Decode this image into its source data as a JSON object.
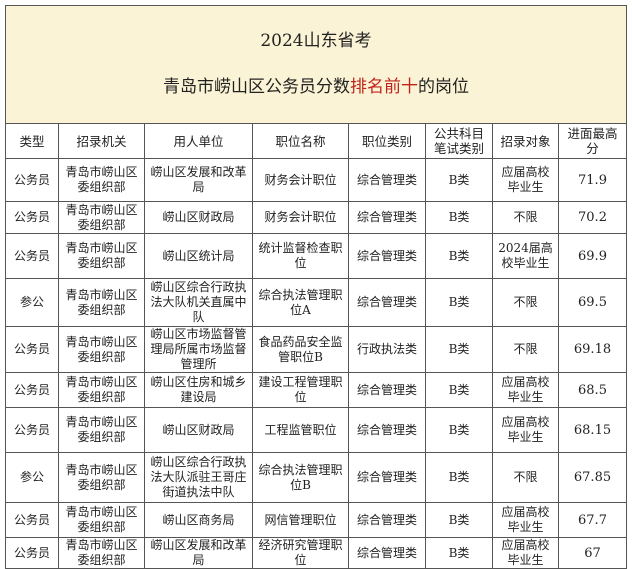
{
  "title": {
    "line1": "2024山东省考",
    "line2_pre": "青岛市崂山区公务员分数",
    "line2_highlight": "排名前十",
    "line2_post": "的岗位",
    "highlight_color": "#c0231b",
    "background": "#fbf3d5"
  },
  "headers": [
    "类型",
    "招录机关",
    "用人单位",
    "职位名称",
    "职位类别",
    "公共科目\n笔试类别",
    "招录对象",
    "进面最高\n分"
  ],
  "rows": [
    [
      "公务员",
      "青岛市崂山区\n委组织部",
      "崂山区发展和改革\n局",
      "财务会计职位",
      "综合管理类",
      "B类",
      "应届高校\n毕业生",
      "71.9"
    ],
    [
      "公务员",
      "青岛市崂山区\n委组织部",
      "崂山区财政局",
      "财务会计职位",
      "综合管理类",
      "B类",
      "不限",
      "70.2"
    ],
    [
      "公务员",
      "青岛市崂山区\n委组织部",
      "崂山区统计局",
      "统计监督检查职\n位",
      "综合管理类",
      "B类",
      "2024届高\n校毕业生",
      "69.9"
    ],
    [
      "参公",
      "青岛市崂山区\n委组织部",
      "崂山区综合行政执\n法大队机关直属中\n队",
      "综合执法管理职\n位A",
      "综合管理类",
      "B类",
      "不限",
      "69.5"
    ],
    [
      "公务员",
      "青岛市崂山区\n委组织部",
      "崂山区市场监督管\n理局所属市场监督\n管理所",
      "食品药品安全监\n管职位B",
      "行政执法类",
      "B类",
      "不限",
      "69.18"
    ],
    [
      "公务员",
      "青岛市崂山区\n委组织部",
      "崂山区住房和城乡\n建设局",
      "建设工程管理职\n位",
      "综合管理类",
      "B类",
      "应届高校\n毕业生",
      "68.5"
    ],
    [
      "公务员",
      "青岛市崂山区\n委组织部",
      "崂山区财政局",
      "工程监管职位",
      "综合管理类",
      "B类",
      "应届高校\n毕业生",
      "68.15"
    ],
    [
      "参公",
      "青岛市崂山区\n委组织部",
      "崂山区综合行政执\n法大队派驻王哥庄\n街道执法中队",
      "综合执法管理职\n位B",
      "综合管理类",
      "B类",
      "不限",
      "67.85"
    ],
    [
      "公务员",
      "青岛市崂山区\n委组织部",
      "崂山区商务局",
      "网信管理职位",
      "综合管理类",
      "B类",
      "应届高校\n毕业生",
      "67.7"
    ],
    [
      "公务员",
      "青岛市崂山区\n委组织部",
      "崂山区发展和改革\n局",
      "经济研究管理职\n位",
      "综合管理类",
      "B类",
      "应届高校\n毕业生",
      "67"
    ]
  ]
}
